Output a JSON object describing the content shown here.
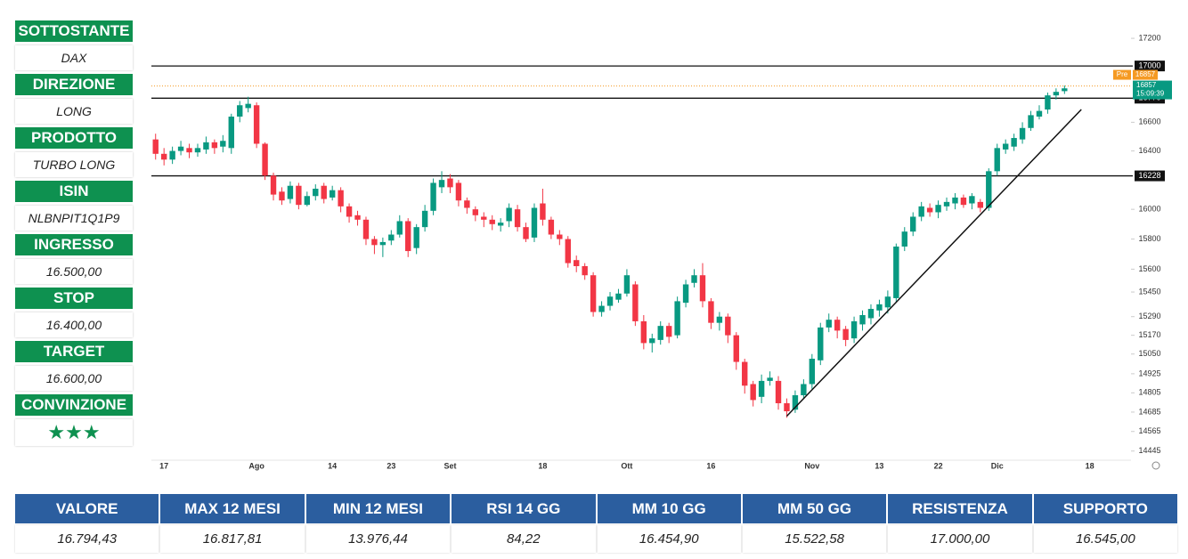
{
  "sidebar": [
    {
      "label": "SOTTOSTANTE",
      "value": "DAX"
    },
    {
      "label": "DIREZIONE",
      "value": "LONG"
    },
    {
      "label": "PRODOTTO",
      "value": "TURBO LONG"
    },
    {
      "label": "ISIN",
      "value": "NLBNPIT1Q1P9"
    },
    {
      "label": "INGRESSO",
      "value": "16.500,00"
    },
    {
      "label": "STOP",
      "value": "16.400,00"
    },
    {
      "label": "TARGET",
      "value": "16.600,00"
    },
    {
      "label": "CONVINZIONE",
      "value": "★★★"
    }
  ],
  "table": {
    "headers": [
      "VALORE",
      "MAX 12 MESI",
      "MIN 12 MESI",
      "RSI 14 GG",
      "MM 10 GG",
      "MM 50 GG",
      "RESISTENZA",
      "SUPPORTO"
    ],
    "values": [
      "16.794,43",
      "16.817,81",
      "13.976,44",
      "84,22",
      "16.454,90",
      "15.522,58",
      "17.000,00",
      "16.545,00"
    ]
  },
  "chart_data": {
    "type": "candlestick",
    "categories": [
      null,
      "17",
      null,
      null,
      null,
      null,
      null,
      null,
      null,
      null,
      null,
      null,
      "Ago",
      null,
      null,
      null,
      null,
      null,
      null,
      null,
      null,
      "14",
      null,
      null,
      null,
      null,
      null,
      null,
      "23",
      null,
      null,
      null,
      null,
      null,
      null,
      "Set",
      null,
      null,
      null,
      null,
      null,
      null,
      null,
      null,
      null,
      null,
      "18",
      null,
      null,
      null,
      null,
      null,
      null,
      null,
      null,
      null,
      "Ott",
      null,
      null,
      null,
      null,
      null,
      null,
      null,
      null,
      null,
      "16",
      null,
      null,
      null,
      null,
      null,
      null,
      null,
      null,
      null,
      null,
      null,
      "Nov",
      null,
      null,
      null,
      null,
      null,
      null,
      null,
      "13",
      null,
      null,
      null,
      null,
      null,
      null,
      "22",
      null,
      null,
      null,
      null,
      null,
      null,
      "Dic",
      null,
      null,
      null,
      null,
      null,
      null,
      null,
      null,
      null,
      null,
      "18"
    ],
    "open": [
      16480,
      16380,
      16340,
      16400,
      16420,
      16390,
      16410,
      16460,
      16430,
      16420,
      16640,
      16700,
      16720,
      16450,
      16230,
      16120,
      16070,
      16160,
      16030,
      16090,
      16160,
      16080,
      16130,
      16020,
      15960,
      15930,
      15800,
      15760,
      15790,
      15830,
      15920,
      15740,
      15880,
      15990,
      16150,
      16210,
      16180,
      16060,
      16000,
      15950,
      15930,
      15890,
      15920,
      16000,
      15880,
      15810,
      16040,
      15930,
      15830,
      15800,
      15660,
      15620,
      15560,
      15320,
      15360,
      15400,
      15440,
      15500,
      15260,
      15120,
      15140,
      15230,
      15170,
      15380,
      15510,
      15560,
      15390,
      15250,
      15290,
      15170,
      15000,
      14860,
      14780,
      14880,
      14880,
      14740,
      14700,
      14790,
      14860,
      15010,
      15220,
      15270,
      15210,
      15150,
      15240,
      15280,
      15330,
      15350,
      15410,
      15750,
      15850,
      15950,
      16010,
      15980,
      16020,
      16040,
      16080,
      16040,
      16050,
      16010,
      16260,
      16410,
      16430,
      16480,
      16560,
      16640,
      16690,
      16790,
      16820,
      null,
      null,
      null
    ],
    "high": [
      16520,
      16420,
      16430,
      16470,
      16450,
      16450,
      16500,
      16480,
      16510,
      16660,
      16750,
      16780,
      16740,
      16460,
      16250,
      16150,
      16190,
      16180,
      16120,
      16170,
      16180,
      16160,
      16150,
      16040,
      15990,
      15950,
      15820,
      15810,
      15860,
      15960,
      15940,
      15900,
      16030,
      16210,
      16260,
      16240,
      16200,
      16080,
      16020,
      15980,
      15960,
      15940,
      16040,
      16030,
      15910,
      16040,
      16140,
      15950,
      15860,
      15820,
      15690,
      15640,
      15580,
      15390,
      15450,
      15470,
      15600,
      15520,
      15300,
      15180,
      15260,
      15250,
      15420,
      15530,
      15600,
      15640,
      15410,
      15320,
      15310,
      15190,
      15020,
      14880,
      14920,
      14940,
      14910,
      14770,
      14820,
      14890,
      15050,
      15250,
      15310,
      15290,
      15230,
      15290,
      15330,
      15370,
      15400,
      15460,
      15770,
      15880,
      15980,
      16050,
      16040,
      16060,
      16080,
      16110,
      16100,
      16110,
      16070,
      16280,
      16450,
      16480,
      16520,
      16600,
      16680,
      16720,
      16810,
      16840,
      16860,
      null,
      null,
      null
    ],
    "low": [
      16340,
      16300,
      16310,
      16370,
      16350,
      16360,
      16380,
      16380,
      16390,
      16380,
      16600,
      16670,
      16420,
      16200,
      16060,
      16030,
      16040,
      16000,
      16020,
      16060,
      16040,
      16060,
      15980,
      15910,
      15890,
      15760,
      15700,
      15680,
      15760,
      15810,
      15680,
      15700,
      15850,
      15960,
      16110,
      16110,
      16020,
      15970,
      15920,
      15880,
      15860,
      15850,
      15880,
      15850,
      15780,
      15780,
      15890,
      15800,
      15760,
      15610,
      15580,
      15530,
      15290,
      15290,
      15330,
      15380,
      15420,
      15230,
      15080,
      15060,
      15110,
      15120,
      15150,
      15350,
      15480,
      15350,
      15210,
      15200,
      15120,
      14950,
      14800,
      14720,
      14740,
      14850,
      14700,
      14650,
      14680,
      14770,
      14830,
      14980,
      15190,
      15150,
      15100,
      15120,
      15200,
      15240,
      15290,
      15310,
      15380,
      15720,
      15820,
      15920,
      15950,
      15940,
      15990,
      16000,
      16010,
      16000,
      15980,
      15990,
      16230,
      16380,
      16400,
      16450,
      16540,
      16620,
      16660,
      16760,
      16800,
      null,
      null,
      null
    ],
    "close": [
      16380,
      16340,
      16400,
      16430,
      16390,
      16420,
      16460,
      16420,
      16470,
      16640,
      16720,
      16730,
      16450,
      16230,
      16100,
      16060,
      16160,
      16030,
      16090,
      16140,
      16070,
      16130,
      16020,
      15950,
      15930,
      15800,
      15760,
      15780,
      15830,
      15920,
      15720,
      15880,
      15990,
      16180,
      16200,
      16150,
      16060,
      16010,
      15960,
      15930,
      15900,
      15910,
      16010,
      15880,
      15800,
      16010,
      15930,
      15830,
      15800,
      15640,
      15620,
      15560,
      15320,
      15360,
      15420,
      15440,
      15560,
      15260,
      15120,
      15150,
      15230,
      15160,
      15390,
      15500,
      15560,
      15390,
      15250,
      15290,
      15170,
      15000,
      14850,
      14760,
      14880,
      14900,
      14740,
      14690,
      14790,
      14860,
      15020,
      15220,
      15270,
      15200,
      15140,
      15260,
      15300,
      15340,
      15370,
      15420,
      15750,
      15850,
      15950,
      16020,
      15980,
      16030,
      16050,
      16080,
      16030,
      16090,
      16010,
      16260,
      16420,
      16450,
      16490,
      16560,
      16650,
      16680,
      16790,
      16815,
      16840,
      null,
      null,
      null
    ],
    "up_color": "#089981",
    "down_color": "#f23645",
    "log": true,
    "ylim": [
      14400,
      17350
    ],
    "yticks": [
      14445,
      14565,
      14685,
      14805,
      14925,
      15050,
      15170,
      15290,
      15450,
      15600,
      15800,
      16000,
      16400,
      16600,
      17200
    ],
    "levels": [
      17000,
      16770,
      16228
    ],
    "level_color": "#111111",
    "last_price": 16857,
    "pre_label": "Pre",
    "countdown": "15:09:39",
    "pre_color": "#f59a23",
    "trendline": {
      "x": [
        75,
        110
      ],
      "y": [
        14660,
        16690
      ]
    }
  }
}
